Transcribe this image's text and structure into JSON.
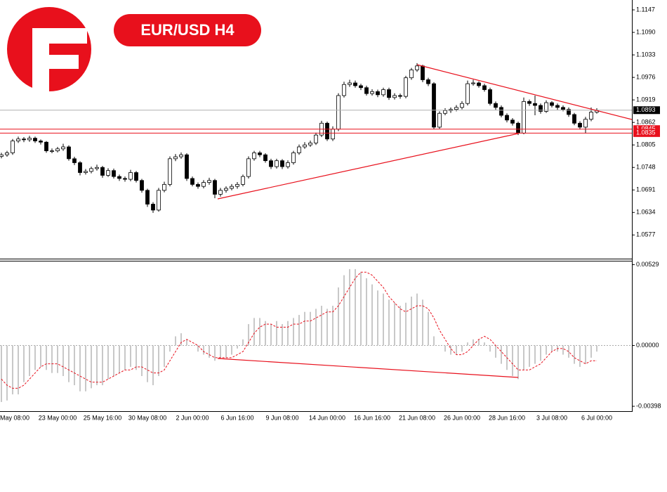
{
  "chart_data": [
    {
      "type": "candlestick",
      "title": "EUR/USD H4",
      "categories": [
        null,
        null,
        "May 08:00",
        null,
        null,
        null,
        null,
        null,
        null,
        null,
        "23 May 00:00",
        null,
        null,
        null,
        null,
        null,
        null,
        null,
        "25 May 16:00",
        null,
        null,
        null,
        null,
        null,
        null,
        null,
        "30 May 08:00",
        null,
        null,
        null,
        null,
        null,
        null,
        null,
        "2 Jun 00:00",
        null,
        null,
        null,
        null,
        null,
        null,
        null,
        "6 Jun 16:00",
        null,
        null,
        null,
        null,
        null,
        null,
        null,
        "9 Jun 08:00",
        null,
        null,
        null,
        null,
        null,
        null,
        null,
        "14 Jun 00:00",
        null,
        null,
        null,
        null,
        null,
        null,
        null,
        "16 Jun 16:00",
        null,
        null,
        null,
        null,
        null,
        null,
        null,
        "21 Jun 08:00",
        null,
        null,
        null,
        null,
        null,
        null,
        null,
        "26 Jun 00:00",
        null,
        null,
        null,
        null,
        null,
        null,
        null,
        "28 Jun 16:00",
        null,
        null,
        null,
        null,
        null,
        null,
        null,
        "3 Jul 08:00",
        null,
        null,
        null,
        null,
        null,
        null,
        null,
        "6 Jul 00:00"
      ],
      "open": [
        1.0776,
        1.078,
        1.0785,
        1.0815,
        1.082,
        1.0818,
        1.0822,
        1.0815,
        1.0812,
        1.079,
        1.079,
        1.0795,
        1.08,
        1.077,
        1.076,
        1.0735,
        1.0738,
        1.0745,
        1.0748,
        1.0728,
        1.074,
        1.0725,
        1.072,
        1.0718,
        1.0735,
        1.0715,
        1.069,
        1.0655,
        1.064,
        1.069,
        1.0705,
        1.077,
        1.0775,
        1.078,
        1.072,
        1.0705,
        1.07,
        1.071,
        1.0715,
        1.068,
        1.069,
        1.0695,
        1.07,
        1.0705,
        1.0725,
        1.077,
        1.0785,
        1.078,
        1.0765,
        1.075,
        1.0765,
        1.075,
        1.076,
        1.0785,
        1.08,
        1.0805,
        1.081,
        1.083,
        1.086,
        1.082,
        1.0845,
        1.093,
        1.0958,
        1.0962,
        1.0955,
        1.095,
        1.0935,
        1.094,
        1.0932,
        1.0945,
        1.0925,
        1.093,
        1.0928,
        1.0975,
        1.0995,
        1.1005,
        1.097,
        1.096,
        1.085,
        1.0885,
        1.0892,
        1.0895,
        1.09,
        1.091,
        1.096,
        1.0962,
        1.0955,
        1.0945,
        1.091,
        1.09,
        1.088,
        1.0868,
        1.086,
        1.0835,
        1.0915,
        1.091,
        1.0905,
        1.089,
        1.0912,
        1.0905,
        1.09,
        1.0895,
        1.0882,
        1.086,
        1.085,
        1.087,
        1.0888
      ],
      "high": [
        1.0785,
        1.079,
        1.082,
        1.0826,
        1.0825,
        1.0828,
        1.0826,
        1.0819,
        1.0815,
        1.0796,
        1.08,
        1.0808,
        1.0804,
        1.0775,
        1.0764,
        1.0744,
        1.075,
        1.0755,
        1.0752,
        1.0746,
        1.0745,
        1.073,
        1.0725,
        1.0742,
        1.0739,
        1.0719,
        1.0694,
        1.066,
        1.0696,
        1.0712,
        1.0776,
        1.0782,
        1.0786,
        1.0784,
        1.0725,
        1.071,
        1.0716,
        1.0722,
        1.0719,
        1.0696,
        1.07,
        1.0706,
        1.0711,
        1.073,
        1.0776,
        1.079,
        1.079,
        1.0784,
        1.077,
        1.077,
        1.0769,
        1.0766,
        1.079,
        1.0806,
        1.0812,
        1.0816,
        1.0836,
        1.0866,
        1.0864,
        1.0852,
        1.0936,
        1.0965,
        1.097,
        1.0968,
        1.096,
        1.0955,
        1.0946,
        1.0945,
        1.095,
        1.095,
        1.0936,
        1.0935,
        1.098,
        1.1,
        1.1012,
        1.1008,
        1.0975,
        1.0964,
        1.089,
        1.0898,
        1.09,
        1.0906,
        1.0916,
        1.0968,
        1.097,
        1.0966,
        1.096,
        1.095,
        1.0915,
        1.0905,
        1.0885,
        1.0873,
        1.0864,
        1.0925,
        1.092,
        1.093,
        1.091,
        1.0918,
        1.0916,
        1.091,
        1.0905,
        1.09,
        1.0886,
        1.0865,
        1.0876,
        1.09,
        1.0898
      ],
      "low": [
        1.0771,
        1.0775,
        1.078,
        1.081,
        1.0812,
        1.0813,
        1.081,
        1.0806,
        1.0785,
        1.0784,
        1.0786,
        1.079,
        1.0765,
        1.0754,
        1.0728,
        1.073,
        1.0733,
        1.074,
        1.0722,
        1.0724,
        1.072,
        1.0714,
        1.0712,
        1.0713,
        1.071,
        1.0684,
        1.0648,
        1.0633,
        1.0636,
        1.0685,
        1.07,
        1.0764,
        1.077,
        1.0714,
        1.07,
        1.0694,
        1.0695,
        1.0704,
        1.067,
        1.0674,
        1.0684,
        1.069,
        1.0694,
        1.07,
        1.072,
        1.0765,
        1.0774,
        1.076,
        1.0744,
        1.0745,
        1.0744,
        1.0745,
        1.0755,
        1.078,
        1.0795,
        1.08,
        1.0805,
        1.0825,
        1.0815,
        1.0815,
        1.084,
        1.0925,
        1.0952,
        1.095,
        1.0944,
        1.093,
        1.093,
        1.0926,
        1.0927,
        1.0919,
        1.092,
        1.0922,
        1.0923,
        1.097,
        1.099,
        1.0964,
        1.0954,
        1.0845,
        1.0846,
        1.088,
        1.0886,
        1.089,
        1.0895,
        1.0905,
        1.0955,
        1.095,
        1.094,
        1.0905,
        1.0894,
        1.0875,
        1.0862,
        1.0854,
        1.083,
        1.0832,
        1.0904,
        1.088,
        1.0884,
        1.0886,
        1.09,
        1.0894,
        1.089,
        1.0876,
        1.0855,
        1.0844,
        1.0834,
        1.0865,
        1.0884
      ],
      "close": [
        1.078,
        1.0785,
        1.0815,
        1.082,
        1.0818,
        1.0822,
        1.0815,
        1.0812,
        1.079,
        1.079,
        1.0795,
        1.08,
        1.077,
        1.076,
        1.0735,
        1.0738,
        1.0745,
        1.0748,
        1.0728,
        1.074,
        1.0725,
        1.072,
        1.0718,
        1.0735,
        1.0715,
        1.069,
        1.0655,
        1.064,
        1.069,
        1.0705,
        1.077,
        1.0775,
        1.078,
        1.072,
        1.0705,
        1.07,
        1.071,
        1.0715,
        1.068,
        1.069,
        1.0695,
        1.07,
        1.0705,
        1.0725,
        1.077,
        1.0785,
        1.078,
        1.0765,
        1.075,
        1.0765,
        1.075,
        1.076,
        1.0785,
        1.08,
        1.0805,
        1.081,
        1.083,
        1.086,
        1.082,
        1.0845,
        1.093,
        1.0958,
        1.0962,
        1.0955,
        1.095,
        1.0935,
        1.094,
        1.0932,
        1.0945,
        1.0925,
        1.093,
        1.0928,
        1.0975,
        1.0995,
        1.1005,
        1.097,
        1.096,
        1.085,
        1.0885,
        1.0892,
        1.0895,
        1.09,
        1.091,
        1.096,
        1.0962,
        1.0955,
        1.0945,
        1.091,
        1.09,
        1.088,
        1.0868,
        1.086,
        1.0835,
        1.0915,
        1.091,
        1.0905,
        1.089,
        1.0912,
        1.0905,
        1.09,
        1.0895,
        1.0882,
        1.086,
        1.085,
        1.087,
        1.0888,
        1.0893
      ],
      "up_color": "#ffffff",
      "down_color": "#000000",
      "ylim": [
        1.0517,
        1.1172
      ],
      "yticks": [
        1.1147,
        {
          "value": 1.109,
          "label": "1.1090"
        },
        1.1033,
        1.0976,
        1.0919,
        1.0862,
        1.0805,
        1.0748,
        1.0691,
        1.0634,
        1.0577
      ],
      "last_price": 1.0893,
      "levels": [
        {
          "value": 1.0845,
          "color": "#e8101c"
        },
        {
          "value": 1.0835,
          "color": "#e8101c"
        }
      ]
    },
    {
      "type": "macd",
      "histogram": {
        "color": "#c8c8c8",
        "values": [
          -0.0037,
          -0.0036,
          -0.0032,
          -0.0032,
          -0.0024,
          -0.002,
          -0.0016,
          -0.0014,
          -0.0016,
          -0.0018,
          -0.0018,
          -0.002,
          -0.0024,
          -0.0026,
          -0.003,
          -0.003,
          -0.0028,
          -0.0026,
          -0.0026,
          -0.0022,
          -0.002,
          -0.0018,
          -0.0016,
          -0.0014,
          -0.0016,
          -0.002,
          -0.0024,
          -0.0026,
          -0.002,
          -0.0014,
          -0.0004,
          0.0006,
          0.0008,
          0.0004,
          0,
          -0.0004,
          -0.0006,
          -0.0008,
          -0.001,
          -0.0008,
          -0.0008,
          -0.0006,
          -0.0002,
          0.0004,
          0.0014,
          0.0018,
          0.0018,
          0.0016,
          0.0014,
          0.0016,
          0.0014,
          0.0016,
          0.0018,
          0.002,
          0.0022,
          0.0022,
          0.0024,
          0.0026,
          0.0024,
          0.0026,
          0.0038,
          0.0046,
          0.005,
          0.005,
          0.0048,
          0.0044,
          0.004,
          0.0036,
          0.0034,
          0.003,
          0.0028,
          0.0026,
          0.0028,
          0.0032,
          0.0034,
          0.003,
          0.0022,
          0.0006,
          0,
          -0.0004,
          -0.0006,
          -0.0006,
          -0.0004,
          0.0002,
          0.0004,
          0.0004,
          0.0002,
          -0.0004,
          -0.0008,
          -0.0012,
          -0.0016,
          -0.002,
          -0.0022,
          -0.0016,
          -0.0014,
          -0.0012,
          -0.001,
          -0.0006,
          -0.0004,
          -0.0004,
          -0.0006,
          -0.0008,
          -0.0012,
          -0.0014,
          -0.0012,
          -0.0008,
          -0.0004
        ]
      },
      "signal": {
        "color": "#e8101c",
        "values": [
          -0.0022,
          -0.0026,
          -0.0028,
          -0.0028,
          -0.0026,
          -0.0022,
          -0.0018,
          -0.0014,
          -0.0012,
          -0.0012,
          -0.0012,
          -0.0014,
          -0.0016,
          -0.0018,
          -0.002,
          -0.0022,
          -0.0024,
          -0.0024,
          -0.0024,
          -0.0022,
          -0.002,
          -0.0018,
          -0.0016,
          -0.0016,
          -0.0014,
          -0.0014,
          -0.0016,
          -0.0018,
          -0.0018,
          -0.0016,
          -0.001,
          -0.0004,
          0.0002,
          0.0004,
          0.0002,
          0,
          -0.0004,
          -0.0006,
          -0.0008,
          -0.0008,
          -0.0008,
          -0.0008,
          -0.0006,
          -0.0004,
          0.0002,
          0.0008,
          0.0012,
          0.0014,
          0.0014,
          0.0012,
          0.0012,
          0.0012,
          0.0014,
          0.0014,
          0.0016,
          0.0016,
          0.0018,
          0.002,
          0.0022,
          0.0022,
          0.0026,
          0.0032,
          0.0038,
          0.0044,
          0.0048,
          0.0048,
          0.0046,
          0.0042,
          0.0038,
          0.0032,
          0.0028,
          0.0024,
          0.0022,
          0.0024,
          0.0026,
          0.0026,
          0.0024,
          0.0018,
          0.001,
          0.0004,
          -0.0002,
          -0.0006,
          -0.0006,
          -0.0004,
          0,
          0.0004,
          0.0006,
          0.0004,
          0,
          -0.0004,
          -0.0008,
          -0.0012,
          -0.0016,
          -0.0016,
          -0.0016,
          -0.0014,
          -0.0012,
          -0.0008,
          -0.0004,
          -0.0002,
          -0.0002,
          -0.0004,
          -0.0008,
          -0.001,
          -0.0012,
          -0.001,
          -0.001
        ]
      },
      "zero_line": true,
      "ylim": [
        -0.0043,
        0.0055
      ],
      "yticks": [
        0.00529,
        {
          "value": 0,
          "label": "0.00000"
        },
        -0.00398
      ]
    }
  ]
}
